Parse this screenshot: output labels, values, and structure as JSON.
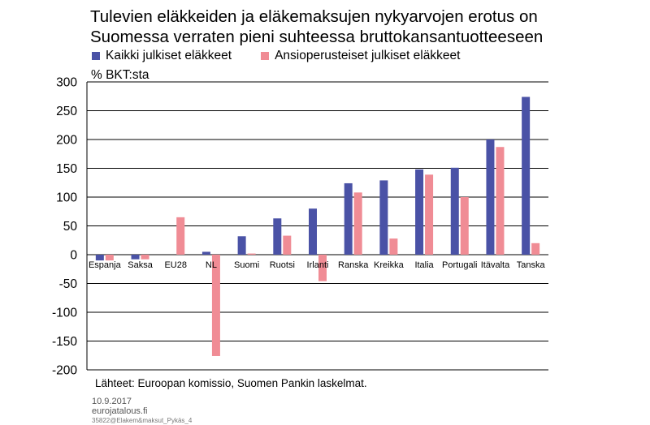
{
  "header": {
    "title_line1": "Tulevien eläkkeiden ja eläkemaksujen nykyarvojen erotus on",
    "title_line2": "Suomessa verraten pieni suhteessa bruttokansantuotteeseen"
  },
  "unit_label": "% BKT:sta",
  "source": "Lähteet: Euroopan komissio, Suomen Pankin laskelmat.",
  "footer": {
    "date": "10.9.2017",
    "site": "eurojatalous.fi",
    "code": "35822@Elakem&maksut_Pykäs_4"
  },
  "colors": {
    "series1": "#4a52a6",
    "series2": "#f08c95",
    "grid": "#000000"
  },
  "chart_data": {
    "type": "bar",
    "title": "Tulevien eläkkeiden ja eläkemaksujen nykyarvojen erotus on Suomessa verraten pieni suhteessa bruttokansantuotteeseen",
    "ylabel": "% BKT:sta",
    "xlabel": "",
    "ylim": [
      -200,
      300
    ],
    "yticks": [
      300,
      250,
      200,
      150,
      100,
      50,
      0,
      -50,
      -100,
      -150,
      -200
    ],
    "grid": true,
    "legend_position": "top",
    "categories": [
      "Espanja",
      "Saksa",
      "EU28",
      "NL",
      "Suomi",
      "Ruotsi",
      "Irlanti",
      "Ranska",
      "Kreikka",
      "Italia",
      "Portugali",
      "Itävalta",
      "Tanska"
    ],
    "series": [
      {
        "name": "Kaikki julkiset eläkkeet",
        "values": [
          -10,
          -8,
          0,
          5,
          32,
          63,
          80,
          124,
          129,
          148,
          151,
          200,
          274
        ]
      },
      {
        "name": "Ansioperusteiset julkiset eläkkeet",
        "values": [
          -10,
          -8,
          65,
          -176,
          2,
          33,
          -46,
          108,
          28,
          139,
          100,
          187,
          20
        ]
      }
    ]
  }
}
